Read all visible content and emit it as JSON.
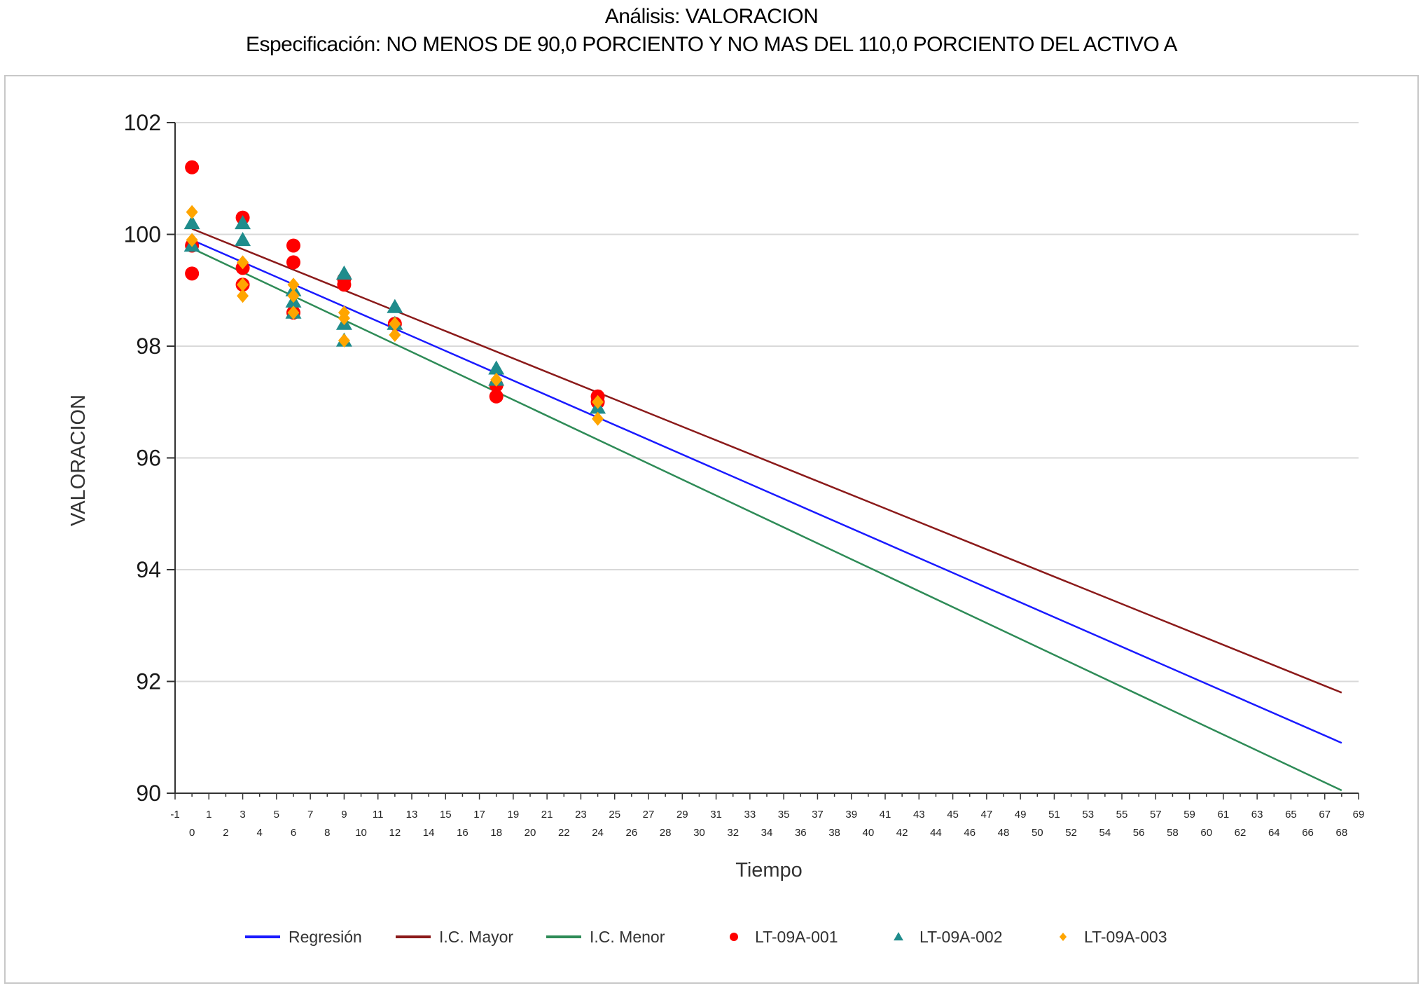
{
  "chart_data": {
    "type": "scatter",
    "title": "Análisis: VALORACION",
    "subtitle": "Especificación: NO MENOS DE 90,0 PORCIENTO Y NO MAS DEL 110,0 PORCIENTO DEL ACTIVO A",
    "xlabel": "Tiempo",
    "ylabel": "VALORACION",
    "xlim": [
      -1,
      69
    ],
    "ylim": [
      90,
      102
    ],
    "yticks": [
      90,
      92,
      94,
      96,
      98,
      100,
      102
    ],
    "ytick_labels": [
      "90",
      "92",
      "94",
      "96",
      "98",
      "100",
      "102"
    ],
    "xtick_labels_odd": [
      "-1",
      "1",
      "3",
      "5",
      "7",
      "9",
      "11",
      "13",
      "15",
      "17",
      "19",
      "21",
      "23",
      "25",
      "27",
      "29",
      "31",
      "33",
      "35",
      "37",
      "39",
      "41",
      "43",
      "45",
      "47",
      "49",
      "51",
      "53",
      "55",
      "57",
      "59",
      "61",
      "63",
      "65",
      "67",
      "69"
    ],
    "xtick_labels_even": [
      "0",
      "2",
      "4",
      "6",
      "8",
      "10",
      "12",
      "14",
      "16",
      "18",
      "20",
      "22",
      "24",
      "26",
      "28",
      "30",
      "32",
      "34",
      "36",
      "38",
      "40",
      "42",
      "44",
      "46",
      "48",
      "50",
      "52",
      "54",
      "56",
      "58",
      "60",
      "62",
      "64",
      "66",
      "68"
    ],
    "grid": true,
    "legend_position": "bottom",
    "series": [
      {
        "name": "Regresión",
        "kind": "line",
        "color": "#1a1aff",
        "x": [
          0,
          68
        ],
        "y": [
          99.9,
          90.9
        ]
      },
      {
        "name": "I.C. Mayor",
        "kind": "line",
        "color": "#8b1a1a",
        "x": [
          0,
          68
        ],
        "y": [
          100.1,
          91.8
        ]
      },
      {
        "name": "I.C. Menor",
        "kind": "line",
        "color": "#2e8b57",
        "x": [
          0,
          68
        ],
        "y": [
          99.75,
          90.05
        ]
      },
      {
        "name": "LT-09A-001",
        "kind": "scatter",
        "marker": "circle",
        "color": "#ff0000",
        "x": [
          0,
          0,
          0,
          3,
          3,
          3,
          6,
          6,
          6,
          9,
          9,
          12,
          18,
          18,
          24,
          24
        ],
        "y": [
          101.2,
          99.8,
          99.3,
          100.3,
          99.4,
          99.1,
          99.8,
          99.5,
          98.6,
          99.2,
          99.1,
          98.4,
          97.3,
          97.1,
          97.1,
          97.0
        ]
      },
      {
        "name": "LT-09A-002",
        "kind": "scatter",
        "marker": "triangle",
        "color": "#1f8c8c",
        "x": [
          0,
          0,
          3,
          3,
          6,
          6,
          6,
          9,
          9,
          9,
          12,
          12,
          18,
          18,
          24
        ],
        "y": [
          100.2,
          99.8,
          100.2,
          99.9,
          99.0,
          98.8,
          98.6,
          99.3,
          98.4,
          98.1,
          98.7,
          98.4,
          97.6,
          97.4,
          96.9
        ]
      },
      {
        "name": "LT-09A-003",
        "kind": "scatter",
        "marker": "diamond",
        "color": "#ffa500",
        "x": [
          0,
          0,
          3,
          3,
          3,
          6,
          6,
          6,
          9,
          9,
          9,
          12,
          12,
          18,
          24,
          24
        ],
        "y": [
          100.4,
          99.9,
          99.5,
          99.1,
          98.9,
          99.1,
          98.9,
          98.6,
          98.6,
          98.5,
          98.1,
          98.4,
          98.2,
          97.4,
          97.0,
          96.7
        ]
      }
    ]
  }
}
